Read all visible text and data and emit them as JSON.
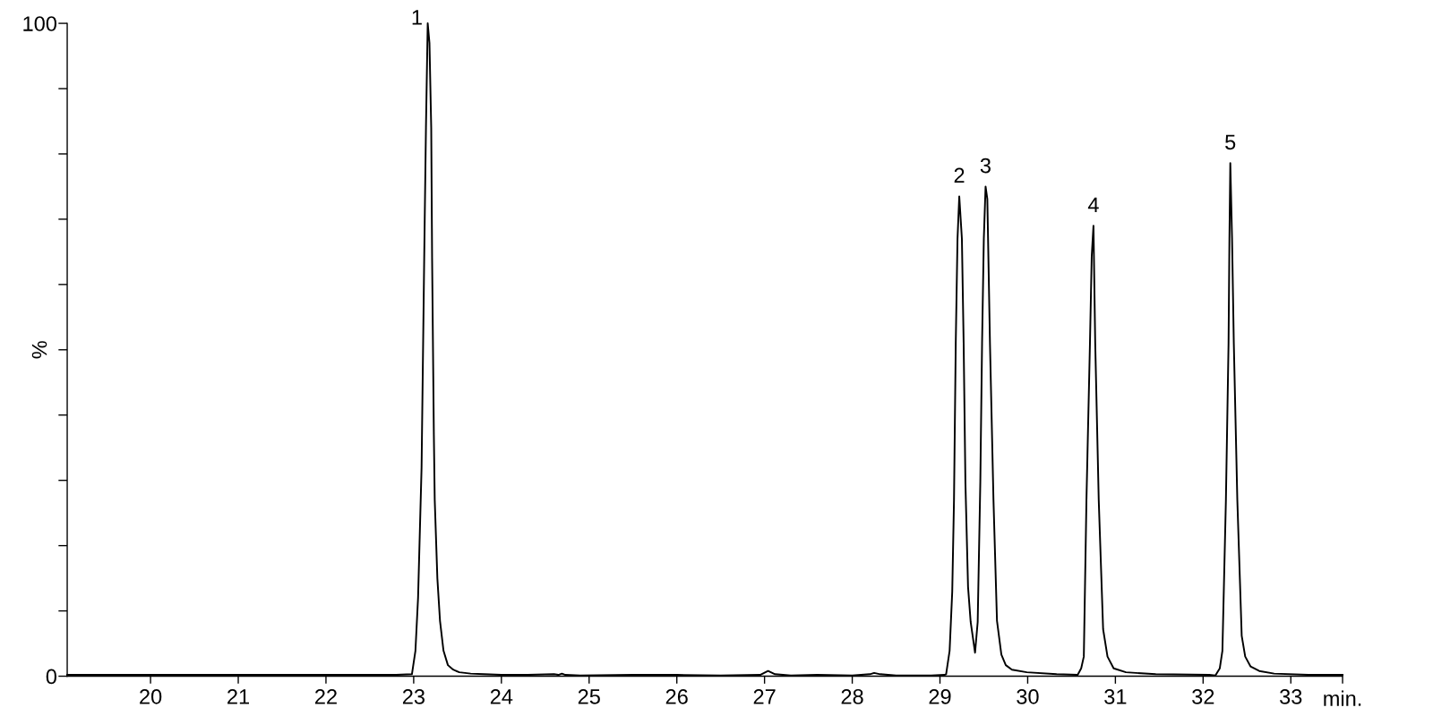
{
  "chart_data": {
    "type": "line",
    "xlabel": "min.",
    "ylabel": "%",
    "xlim": [
      19.05,
      33.59
    ],
    "ylim": [
      0,
      100
    ],
    "xticks": [
      20,
      21,
      22,
      23,
      24,
      25,
      26,
      27,
      28,
      29,
      30,
      31,
      32,
      33,
      {
        "value": 33.59,
        "label": null
      }
    ],
    "yticks": [
      0,
      {
        "value": 10,
        "label": null
      },
      {
        "value": 20,
        "label": null
      },
      {
        "value": 30,
        "label": null
      },
      {
        "value": 40,
        "label": null
      },
      {
        "value": 50,
        "label": null
      },
      {
        "value": 60,
        "label": null
      },
      {
        "value": 70,
        "label": null
      },
      {
        "value": 80,
        "label": null
      },
      {
        "value": 90,
        "label": null
      },
      100
    ],
    "line_style": "solid",
    "series": [
      {
        "color": "#000000",
        "x": [
          19.05,
          20,
          21,
          22,
          22.8,
          22.98,
          23.02,
          23.05,
          23.09,
          23.12,
          23.14,
          23.16,
          23.18,
          23.2,
          23.21,
          23.23,
          23.24,
          23.27,
          23.3,
          23.34,
          23.39,
          23.45,
          23.52,
          23.65,
          23.8,
          24.0,
          24.3,
          24.6,
          24.65,
          24.69,
          24.73,
          24.9,
          25.5,
          26.0,
          26.5,
          26.95,
          27.04,
          27.12,
          27.3,
          27.6,
          28.0,
          28.2,
          28.25,
          28.32,
          28.5,
          28.9,
          29.05,
          29.07,
          29.11,
          29.14,
          29.16,
          29.18,
          29.2,
          29.22,
          29.25,
          29.27,
          29.29,
          29.32,
          29.35,
          29.4,
          29.43,
          29.46,
          29.48,
          29.5,
          29.52,
          29.54,
          29.57,
          29.61,
          29.65,
          29.7,
          29.75,
          29.82,
          29.99,
          30.33,
          30.57,
          30.61,
          30.64,
          30.67,
          30.71,
          30.73,
          30.75,
          30.77,
          30.81,
          30.86,
          30.91,
          30.98,
          31.12,
          31.46,
          32.07,
          32.14,
          32.19,
          32.22,
          32.26,
          32.29,
          32.3,
          32.31,
          32.33,
          32.35,
          32.39,
          32.44,
          32.48,
          32.54,
          32.64,
          32.81,
          33.2,
          33.59
        ],
        "values": [
          0.2,
          0.2,
          0.2,
          0.2,
          0.2,
          0.3,
          3.9,
          12,
          32,
          64,
          84,
          100,
          97,
          84,
          64,
          37,
          27,
          15,
          8.5,
          3.9,
          1.7,
          1.0,
          0.6,
          0.4,
          0.3,
          0.2,
          0.2,
          0.3,
          0.2,
          0.4,
          0.2,
          0.1,
          0.2,
          0.2,
          0.1,
          0.2,
          0.8,
          0.3,
          0.1,
          0.2,
          0.1,
          0.3,
          0.5,
          0.3,
          0.1,
          0.1,
          0.2,
          0.3,
          3.9,
          13,
          27,
          51,
          67,
          73.5,
          67,
          51,
          29.7,
          13.7,
          8.3,
          3.6,
          8.3,
          29.7,
          51,
          67,
          75.0,
          73.1,
          51,
          27,
          8.5,
          3.3,
          1.7,
          1.0,
          0.6,
          0.3,
          0.2,
          1.2,
          3.0,
          27,
          51,
          64.3,
          69.0,
          51,
          27,
          7.2,
          3.0,
          1.2,
          0.6,
          0.3,
          0.2,
          0.1,
          1.2,
          3.9,
          27,
          51,
          67,
          78.6,
          67,
          51,
          27,
          6.2,
          3.0,
          1.5,
          0.8,
          0.4,
          0.2,
          0.2
        ]
      }
    ],
    "annotations": [
      {
        "text": "1",
        "x": 23.16,
        "y": 100
      },
      {
        "text": "2",
        "x": 29.22,
        "y": 73.5
      },
      {
        "text": "3",
        "x": 29.52,
        "y": 75.0
      },
      {
        "text": "4",
        "x": 30.75,
        "y": 69.0
      },
      {
        "text": "5",
        "x": 32.31,
        "y": 78.6
      }
    ]
  }
}
